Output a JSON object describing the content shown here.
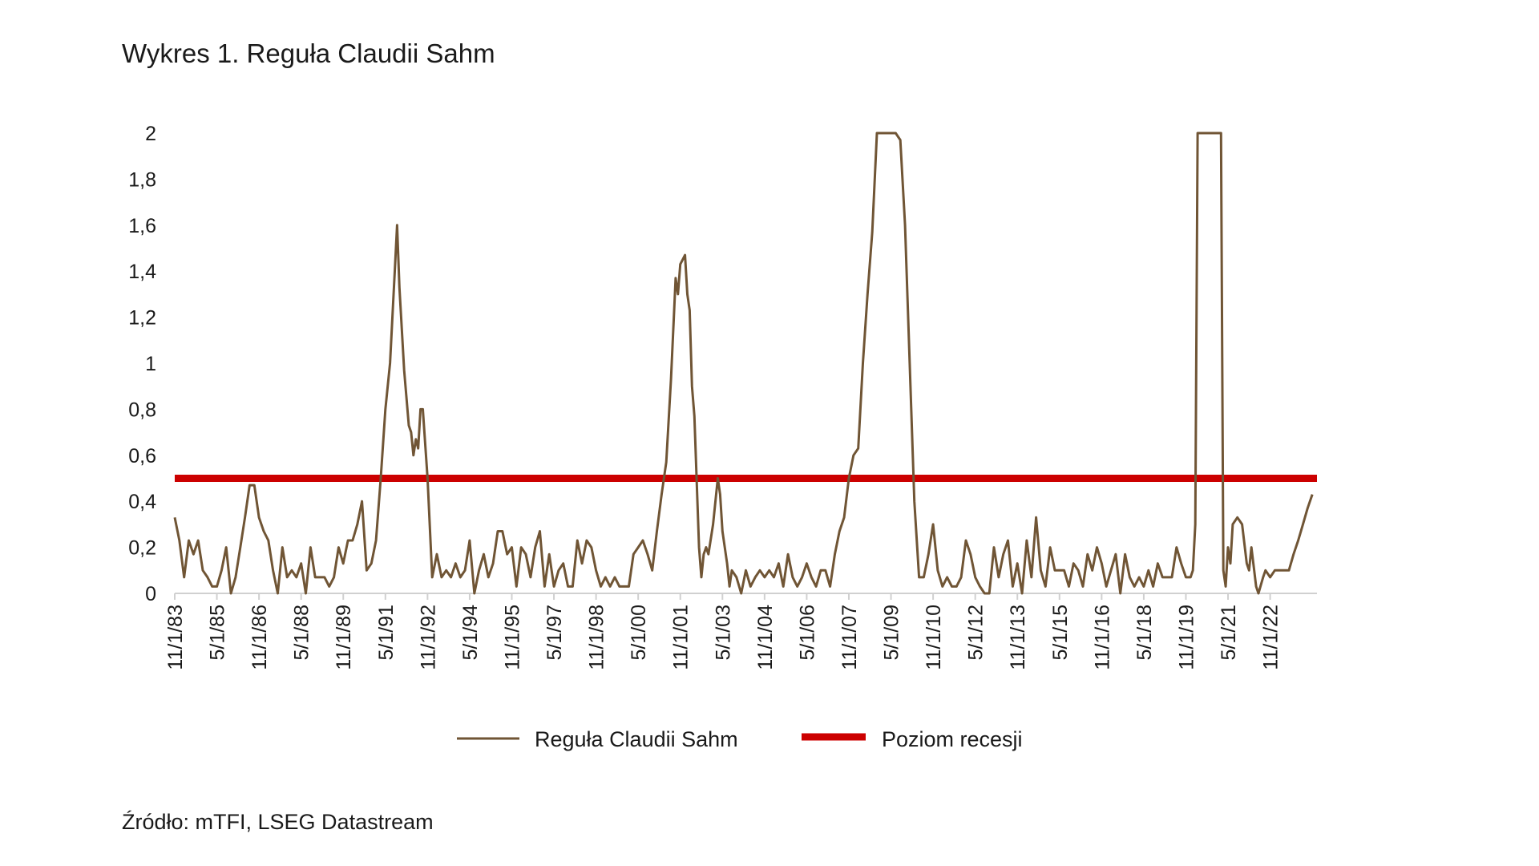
{
  "title": "Wykres 1. Reguła Claudii Sahm",
  "source": "Źródło: mTFI, LSEG Datastream",
  "colors": {
    "sahm": "#705535",
    "threshold": "#cc0000",
    "axis": "#d0d0d0"
  },
  "chart_data": {
    "type": "line",
    "ylim": [
      0,
      2
    ],
    "y_ticks": [
      {
        "value": 0,
        "label": "0"
      },
      {
        "value": 0.2,
        "label": "0,2"
      },
      {
        "value": 0.4,
        "label": "0,4"
      },
      {
        "value": 0.6,
        "label": "0,6"
      },
      {
        "value": 0.8,
        "label": "0,8"
      },
      {
        "value": 1,
        "label": "1"
      },
      {
        "value": 1.2,
        "label": "1,2"
      },
      {
        "value": 1.4,
        "label": "1,4"
      },
      {
        "value": 1.6,
        "label": "1,6"
      },
      {
        "value": 1.8,
        "label": "1,8"
      },
      {
        "value": 2,
        "label": "2"
      }
    ],
    "x_tick_labels": [
      "11/1/83",
      "5/1/85",
      "11/1/86",
      "5/1/88",
      "11/1/89",
      "5/1/91",
      "11/1/92",
      "5/1/94",
      "11/1/95",
      "5/1/97",
      "11/1/98",
      "5/1/00",
      "11/1/01",
      "5/1/03",
      "11/1/04",
      "5/1/06",
      "11/1/07",
      "5/1/09",
      "11/1/10",
      "5/1/12",
      "11/1/13",
      "5/1/15",
      "11/1/16",
      "5/1/18",
      "11/1/19",
      "5/1/21",
      "11/1/22"
    ],
    "x_range": [
      "1983-11",
      "2024-07"
    ],
    "grid": false,
    "legend_position": "bottom",
    "series": [
      {
        "name": "Reguła Claudii Sahm",
        "points": [
          [
            "1983-11",
            0.33
          ],
          [
            "1984-01",
            0.23
          ],
          [
            "1984-03",
            0.07
          ],
          [
            "1984-05",
            0.23
          ],
          [
            "1984-07",
            0.17
          ],
          [
            "1984-09",
            0.23
          ],
          [
            "1984-11",
            0.1
          ],
          [
            "1985-01",
            0.07
          ],
          [
            "1985-03",
            0.03
          ],
          [
            "1985-05",
            0.03
          ],
          [
            "1985-07",
            0.1
          ],
          [
            "1985-09",
            0.2
          ],
          [
            "1985-11",
            0.0
          ],
          [
            "1986-01",
            0.07
          ],
          [
            "1986-03",
            0.2
          ],
          [
            "1986-05",
            0.33
          ],
          [
            "1986-07",
            0.47
          ],
          [
            "1986-09",
            0.47
          ],
          [
            "1986-11",
            0.33
          ],
          [
            "1987-01",
            0.27
          ],
          [
            "1987-03",
            0.23
          ],
          [
            "1987-05",
            0.1
          ],
          [
            "1987-07",
            0.0
          ],
          [
            "1987-09",
            0.2
          ],
          [
            "1987-11",
            0.07
          ],
          [
            "1988-01",
            0.1
          ],
          [
            "1988-03",
            0.07
          ],
          [
            "1988-05",
            0.13
          ],
          [
            "1988-07",
            0.0
          ],
          [
            "1988-09",
            0.2
          ],
          [
            "1988-11",
            0.07
          ],
          [
            "1989-01",
            0.07
          ],
          [
            "1989-03",
            0.07
          ],
          [
            "1989-05",
            0.03
          ],
          [
            "1989-07",
            0.07
          ],
          [
            "1989-09",
            0.2
          ],
          [
            "1989-11",
            0.13
          ],
          [
            "1990-01",
            0.23
          ],
          [
            "1990-03",
            0.23
          ],
          [
            "1990-05",
            0.3
          ],
          [
            "1990-07",
            0.4
          ],
          [
            "1990-09",
            0.1
          ],
          [
            "1990-11",
            0.13
          ],
          [
            "1991-01",
            0.23
          ],
          [
            "1991-03",
            0.5
          ],
          [
            "1991-05",
            0.8
          ],
          [
            "1991-07",
            1.0
          ],
          [
            "1991-09",
            1.4
          ],
          [
            "1991-10",
            1.6
          ],
          [
            "1991-11",
            1.33
          ],
          [
            "1992-01",
            0.97
          ],
          [
            "1992-03",
            0.73
          ],
          [
            "1992-04",
            0.7
          ],
          [
            "1992-05",
            0.6
          ],
          [
            "1992-06",
            0.67
          ],
          [
            "1992-07",
            0.63
          ],
          [
            "1992-08",
            0.8
          ],
          [
            "1992-09",
            0.8
          ],
          [
            "1992-11",
            0.5
          ],
          [
            "1993-01",
            0.07
          ],
          [
            "1993-03",
            0.17
          ],
          [
            "1993-05",
            0.07
          ],
          [
            "1993-07",
            0.1
          ],
          [
            "1993-09",
            0.07
          ],
          [
            "1993-11",
            0.13
          ],
          [
            "1994-01",
            0.07
          ],
          [
            "1994-03",
            0.1
          ],
          [
            "1994-05",
            0.23
          ],
          [
            "1994-07",
            0.0
          ],
          [
            "1994-09",
            0.1
          ],
          [
            "1994-11",
            0.17
          ],
          [
            "1995-01",
            0.07
          ],
          [
            "1995-03",
            0.13
          ],
          [
            "1995-05",
            0.27
          ],
          [
            "1995-07",
            0.27
          ],
          [
            "1995-09",
            0.17
          ],
          [
            "1995-11",
            0.2
          ],
          [
            "1996-01",
            0.03
          ],
          [
            "1996-03",
            0.2
          ],
          [
            "1996-05",
            0.17
          ],
          [
            "1996-07",
            0.07
          ],
          [
            "1996-09",
            0.2
          ],
          [
            "1996-11",
            0.27
          ],
          [
            "1997-01",
            0.03
          ],
          [
            "1997-03",
            0.17
          ],
          [
            "1997-05",
            0.03
          ],
          [
            "1997-07",
            0.1
          ],
          [
            "1997-09",
            0.13
          ],
          [
            "1997-11",
            0.03
          ],
          [
            "1998-01",
            0.03
          ],
          [
            "1998-03",
            0.23
          ],
          [
            "1998-05",
            0.13
          ],
          [
            "1998-07",
            0.23
          ],
          [
            "1998-09",
            0.2
          ],
          [
            "1998-11",
            0.1
          ],
          [
            "1999-01",
            0.03
          ],
          [
            "1999-03",
            0.07
          ],
          [
            "1999-05",
            0.03
          ],
          [
            "1999-07",
            0.07
          ],
          [
            "1999-09",
            0.03
          ],
          [
            "1999-11",
            0.03
          ],
          [
            "2000-01",
            0.03
          ],
          [
            "2000-03",
            0.17
          ],
          [
            "2000-05",
            0.2
          ],
          [
            "2000-07",
            0.23
          ],
          [
            "2000-09",
            0.17
          ],
          [
            "2000-11",
            0.1
          ],
          [
            "2001-01",
            0.27
          ],
          [
            "2001-03",
            0.43
          ],
          [
            "2001-05",
            0.57
          ],
          [
            "2001-07",
            0.93
          ],
          [
            "2001-09",
            1.37
          ],
          [
            "2001-10",
            1.3
          ],
          [
            "2001-11",
            1.43
          ],
          [
            "2002-01",
            1.47
          ],
          [
            "2002-02",
            1.3
          ],
          [
            "2002-03",
            1.23
          ],
          [
            "2002-04",
            0.9
          ],
          [
            "2002-05",
            0.77
          ],
          [
            "2002-07",
            0.2
          ],
          [
            "2002-08",
            0.07
          ],
          [
            "2002-09",
            0.17
          ],
          [
            "2002-10",
            0.2
          ],
          [
            "2002-11",
            0.17
          ],
          [
            "2003-01",
            0.3
          ],
          [
            "2003-03",
            0.5
          ],
          [
            "2003-04",
            0.43
          ],
          [
            "2003-05",
            0.27
          ],
          [
            "2003-07",
            0.13
          ],
          [
            "2003-08",
            0.03
          ],
          [
            "2003-09",
            0.1
          ],
          [
            "2003-11",
            0.07
          ],
          [
            "2004-01",
            0.0
          ],
          [
            "2004-03",
            0.1
          ],
          [
            "2004-05",
            0.03
          ],
          [
            "2004-07",
            0.07
          ],
          [
            "2004-09",
            0.1
          ],
          [
            "2004-11",
            0.07
          ],
          [
            "2005-01",
            0.1
          ],
          [
            "2005-03",
            0.07
          ],
          [
            "2005-05",
            0.13
          ],
          [
            "2005-07",
            0.03
          ],
          [
            "2005-09",
            0.17
          ],
          [
            "2005-11",
            0.07
          ],
          [
            "2006-01",
            0.03
          ],
          [
            "2006-03",
            0.07
          ],
          [
            "2006-05",
            0.13
          ],
          [
            "2006-07",
            0.07
          ],
          [
            "2006-09",
            0.03
          ],
          [
            "2006-11",
            0.1
          ],
          [
            "2007-01",
            0.1
          ],
          [
            "2007-03",
            0.03
          ],
          [
            "2007-05",
            0.17
          ],
          [
            "2007-07",
            0.27
          ],
          [
            "2007-09",
            0.33
          ],
          [
            "2007-11",
            0.5
          ],
          [
            "2008-01",
            0.6
          ],
          [
            "2008-03",
            0.63
          ],
          [
            "2008-05",
            1.0
          ],
          [
            "2008-07",
            1.3
          ],
          [
            "2008-09",
            1.57
          ],
          [
            "2008-11",
            2.0
          ],
          [
            "2009-01",
            2.0
          ],
          [
            "2009-03",
            2.0
          ],
          [
            "2009-05",
            2.0
          ],
          [
            "2009-07",
            2.0
          ],
          [
            "2009-09",
            1.97
          ],
          [
            "2009-11",
            1.6
          ],
          [
            "2010-01",
            1.0
          ],
          [
            "2010-03",
            0.4
          ],
          [
            "2010-05",
            0.07
          ],
          [
            "2010-07",
            0.07
          ],
          [
            "2010-09",
            0.17
          ],
          [
            "2010-11",
            0.3
          ],
          [
            "2011-01",
            0.1
          ],
          [
            "2011-03",
            0.03
          ],
          [
            "2011-05",
            0.07
          ],
          [
            "2011-07",
            0.03
          ],
          [
            "2011-09",
            0.03
          ],
          [
            "2011-11",
            0.07
          ],
          [
            "2012-01",
            0.23
          ],
          [
            "2012-03",
            0.17
          ],
          [
            "2012-05",
            0.07
          ],
          [
            "2012-07",
            0.03
          ],
          [
            "2012-09",
            0.0
          ],
          [
            "2012-11",
            0.0
          ],
          [
            "2013-01",
            0.2
          ],
          [
            "2013-03",
            0.07
          ],
          [
            "2013-05",
            0.17
          ],
          [
            "2013-07",
            0.23
          ],
          [
            "2013-09",
            0.03
          ],
          [
            "2013-11",
            0.13
          ],
          [
            "2014-01",
            0.0
          ],
          [
            "2014-03",
            0.23
          ],
          [
            "2014-05",
            0.07
          ],
          [
            "2014-07",
            0.33
          ],
          [
            "2014-09",
            0.1
          ],
          [
            "2014-11",
            0.03
          ],
          [
            "2015-01",
            0.2
          ],
          [
            "2015-03",
            0.1
          ],
          [
            "2015-05",
            0.1
          ],
          [
            "2015-07",
            0.1
          ],
          [
            "2015-09",
            0.03
          ],
          [
            "2015-11",
            0.13
          ],
          [
            "2016-01",
            0.1
          ],
          [
            "2016-03",
            0.03
          ],
          [
            "2016-05",
            0.17
          ],
          [
            "2016-07",
            0.1
          ],
          [
            "2016-09",
            0.2
          ],
          [
            "2016-11",
            0.13
          ],
          [
            "2017-01",
            0.03
          ],
          [
            "2017-03",
            0.1
          ],
          [
            "2017-05",
            0.17
          ],
          [
            "2017-07",
            0.0
          ],
          [
            "2017-09",
            0.17
          ],
          [
            "2017-11",
            0.07
          ],
          [
            "2018-01",
            0.03
          ],
          [
            "2018-03",
            0.07
          ],
          [
            "2018-05",
            0.03
          ],
          [
            "2018-07",
            0.1
          ],
          [
            "2018-09",
            0.03
          ],
          [
            "2018-11",
            0.13
          ],
          [
            "2019-01",
            0.07
          ],
          [
            "2019-03",
            0.07
          ],
          [
            "2019-05",
            0.07
          ],
          [
            "2019-07",
            0.2
          ],
          [
            "2019-09",
            0.13
          ],
          [
            "2019-11",
            0.07
          ],
          [
            "2020-01",
            0.07
          ],
          [
            "2020-02",
            0.1
          ],
          [
            "2020-03",
            0.3
          ],
          [
            "2020-04",
            2.0
          ],
          [
            "2020-06",
            2.0
          ],
          [
            "2020-09",
            2.0
          ],
          [
            "2020-12",
            2.0
          ],
          [
            "2021-02",
            2.0
          ],
          [
            "2021-03",
            0.1
          ],
          [
            "2021-04",
            0.03
          ],
          [
            "2021-05",
            0.2
          ],
          [
            "2021-06",
            0.13
          ],
          [
            "2021-07",
            0.3
          ],
          [
            "2021-09",
            0.33
          ],
          [
            "2021-11",
            0.3
          ],
          [
            "2022-01",
            0.13
          ],
          [
            "2022-02",
            0.1
          ],
          [
            "2022-03",
            0.2
          ],
          [
            "2022-05",
            0.03
          ],
          [
            "2022-06",
            0.0
          ],
          [
            "2022-08",
            0.07
          ],
          [
            "2022-09",
            0.1
          ],
          [
            "2022-11",
            0.07
          ],
          [
            "2023-01",
            0.1
          ],
          [
            "2023-03",
            0.1
          ],
          [
            "2023-05",
            0.1
          ],
          [
            "2023-07",
            0.1
          ],
          [
            "2023-09",
            0.17
          ],
          [
            "2023-11",
            0.23
          ],
          [
            "2024-01",
            0.3
          ],
          [
            "2024-03",
            0.37
          ],
          [
            "2024-05",
            0.43
          ]
        ]
      },
      {
        "name": "Poziom recesji",
        "value": 0.5
      }
    ]
  }
}
